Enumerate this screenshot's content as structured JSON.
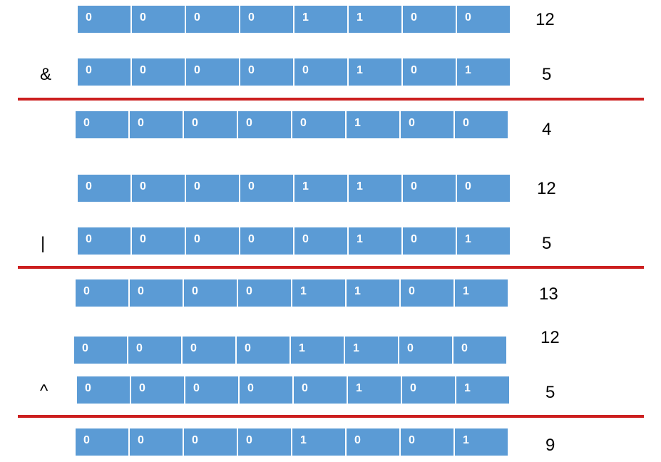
{
  "operations": [
    {
      "operator": "&",
      "operand_a": {
        "bits": [
          "0",
          "0",
          "0",
          "0",
          "1",
          "1",
          "0",
          "0"
        ],
        "value": "12"
      },
      "operand_b": {
        "bits": [
          "0",
          "0",
          "0",
          "0",
          "0",
          "1",
          "0",
          "1"
        ],
        "value": "5"
      },
      "result": {
        "bits": [
          "0",
          "0",
          "0",
          "0",
          "0",
          "1",
          "0",
          "0"
        ],
        "value": "4"
      }
    },
    {
      "operator": "|",
      "operand_a": {
        "bits": [
          "0",
          "0",
          "0",
          "0",
          "1",
          "1",
          "0",
          "0"
        ],
        "value": "12"
      },
      "operand_b": {
        "bits": [
          "0",
          "0",
          "0",
          "0",
          "0",
          "1",
          "0",
          "1"
        ],
        "value": "5"
      },
      "result": {
        "bits": [
          "0",
          "0",
          "0",
          "0",
          "1",
          "1",
          "0",
          "1"
        ],
        "value": "13"
      }
    },
    {
      "operator": "^",
      "operand_a": {
        "bits": [
          "0",
          "0",
          "0",
          "0",
          "1",
          "1",
          "0",
          "0"
        ],
        "value": "12"
      },
      "operand_b": {
        "bits": [
          "0",
          "0",
          "0",
          "0",
          "0",
          "1",
          "0",
          "1"
        ],
        "value": "5"
      },
      "result": {
        "bits": [
          "0",
          "0",
          "0",
          "0",
          "1",
          "0",
          "0",
          "1"
        ],
        "value": "9"
      }
    }
  ],
  "colors": {
    "cell_fill": "#5b9bd5",
    "cell_text": "#ffffff",
    "divider": "#cc1f1f"
  }
}
